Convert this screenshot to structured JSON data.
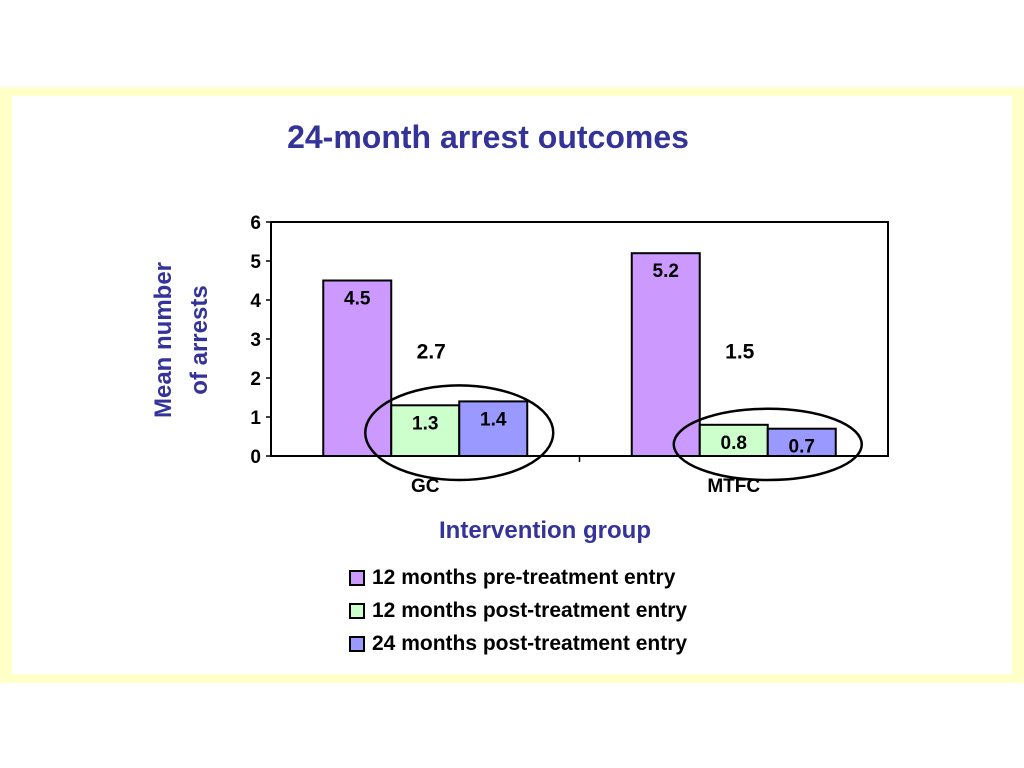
{
  "chart_data": {
    "type": "bar",
    "title": "24-month arrest outcomes",
    "ylabel_lines": [
      "Mean number",
      "of arrests"
    ],
    "xlabel": "Intervention group",
    "categories": [
      "GC",
      "MTFC"
    ],
    "ylim": [
      0,
      6
    ],
    "yticks": [
      0,
      1,
      2,
      3,
      4,
      5,
      6
    ],
    "grid": false,
    "legend_position": "bottom",
    "series": [
      {
        "name": "12 months pre-treatment entry",
        "values": [
          4.5,
          5.2
        ],
        "labels": [
          "4.5",
          "5.2"
        ],
        "color": "#cc99ff"
      },
      {
        "name": "12 months post-treatment entry",
        "values": [
          1.3,
          0.8
        ],
        "labels": [
          "1.3",
          "0.8"
        ],
        "color": "#ccffcc"
      },
      {
        "name": "24 months post-treatment entry",
        "values": [
          1.4,
          0.7
        ],
        "labels": [
          "1.4",
          "0.7"
        ],
        "color": "#9999ff"
      }
    ],
    "annotations": [
      {
        "category": "GC",
        "text": "2.7",
        "note": "circled post-treatment bars"
      },
      {
        "category": "MTFC",
        "text": "1.5",
        "note": "circled post-treatment bars"
      }
    ]
  },
  "colors": {
    "title": "#333399",
    "frame": "#ffffc8"
  }
}
